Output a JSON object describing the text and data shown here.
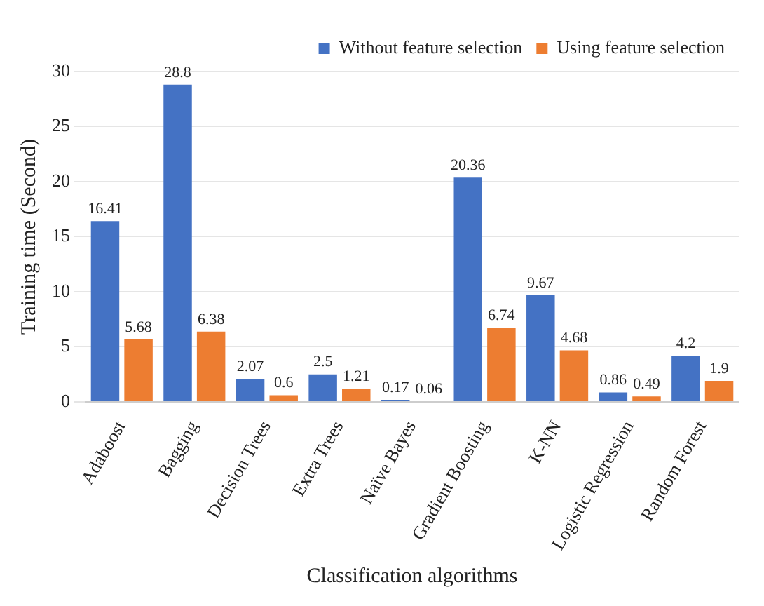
{
  "chart_data": {
    "type": "bar",
    "xlabel": "Classification algorithms",
    "ylabel": "Training time (Second)",
    "categories": [
      "Adaboost",
      "Bagging",
      "Decision Trees",
      "Extra Trees",
      "Naïve Bayes",
      "Gradient Boosting",
      "K-NN",
      "Logistic Regression",
      "Random Forest"
    ],
    "series": [
      {
        "name": "Without feature selection",
        "color": "#4472c4",
        "values": [
          16.41,
          28.8,
          2.07,
          2.5,
          0.17,
          20.36,
          9.67,
          0.86,
          4.2
        ]
      },
      {
        "name": "Using feature selection",
        "color": "#ed7d31",
        "values": [
          5.68,
          6.38,
          0.6,
          1.21,
          0.06,
          6.74,
          4.68,
          0.49,
          1.9
        ]
      }
    ],
    "ylim": [
      0,
      30
    ],
    "yticks": [
      0,
      5,
      10,
      15,
      20,
      25,
      30
    ],
    "grid": "y",
    "legend": "top right",
    "data_labels": true
  }
}
